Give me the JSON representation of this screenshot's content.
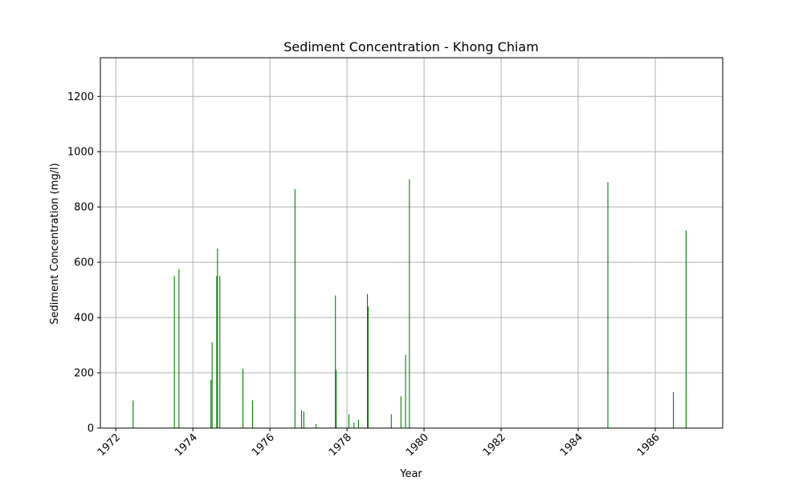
{
  "chart_data": {
    "type": "bar",
    "title": "Sediment Concentration - Khong Chiam",
    "xlabel": "Year",
    "ylabel": "Sediment Concentration (mg/l)",
    "xlim": [
      1971.6,
      1987.75
    ],
    "ylim": [
      0,
      1340
    ],
    "xticks": [
      1972,
      1974,
      1976,
      1978,
      1980,
      1982,
      1984,
      1986
    ],
    "yticks": [
      0,
      200,
      400,
      600,
      800,
      1000,
      1200
    ],
    "grid": true,
    "bar_color": "#008000",
    "series": [
      {
        "x": [
          1972.45,
          1973.52,
          1973.64,
          1974.47,
          1974.5,
          1974.62,
          1974.64,
          1974.7,
          1975.3,
          1975.55,
          1976.65,
          1976.82,
          1976.88,
          1977.2,
          1977.7,
          1977.72,
          1978.05,
          1978.18,
          1978.3,
          1978.53,
          1978.55,
          1979.15,
          1979.4,
          1979.52,
          1979.62,
          1984.77,
          1986.47,
          1986.8
        ],
        "values": [
          100,
          550,
          575,
          175,
          310,
          550,
          650,
          550,
          215,
          100,
          865,
          65,
          60,
          15,
          480,
          210,
          50,
          20,
          30,
          485,
          440,
          50,
          115,
          265,
          900,
          890,
          130,
          715
        ]
      }
    ]
  }
}
